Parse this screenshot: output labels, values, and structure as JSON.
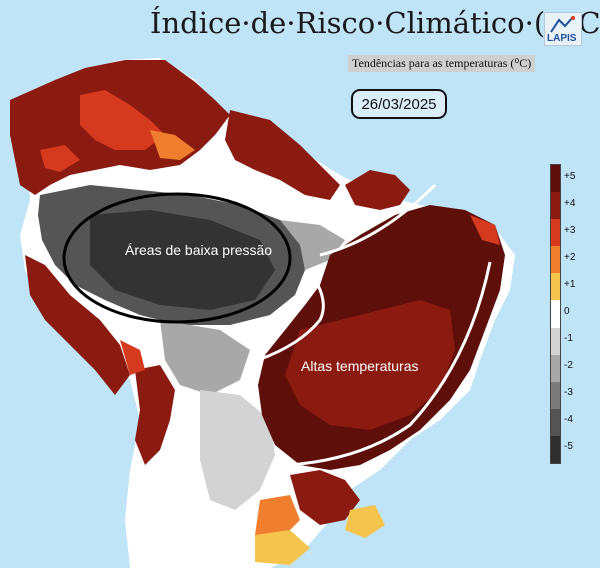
{
  "title": "Índice·de·Risco·Climático·(IRC)",
  "subtitle": "Tendências para as temperaturas (⁰C)",
  "date": "26/03/2025",
  "logo": {
    "text": "LAPIS"
  },
  "annotations": {
    "low_pressure": "Áreas de baixa pressão",
    "high_temperatures": "Altas temperaturas"
  },
  "legend": {
    "items": [
      {
        "label": "+5",
        "color": "#5e0f0a"
      },
      {
        "label": "+4",
        "color": "#8b1a10"
      },
      {
        "label": "+3",
        "color": "#d53a1e"
      },
      {
        "label": "+2",
        "color": "#ef7f2f"
      },
      {
        "label": "+1",
        "color": "#f5c44c"
      },
      {
        "label": "0",
        "color": "#ffffff"
      },
      {
        "label": "-1",
        "color": "#d3d3d3"
      },
      {
        "label": "-2",
        "color": "#a8a8a8"
      },
      {
        "label": "-3",
        "color": "#7b7b7b"
      },
      {
        "label": "-4",
        "color": "#545454"
      },
      {
        "label": "-5",
        "color": "#2f2f2f"
      }
    ]
  },
  "colors": {
    "ocean": "#bfe3f7",
    "land_base": "#ffffff"
  }
}
